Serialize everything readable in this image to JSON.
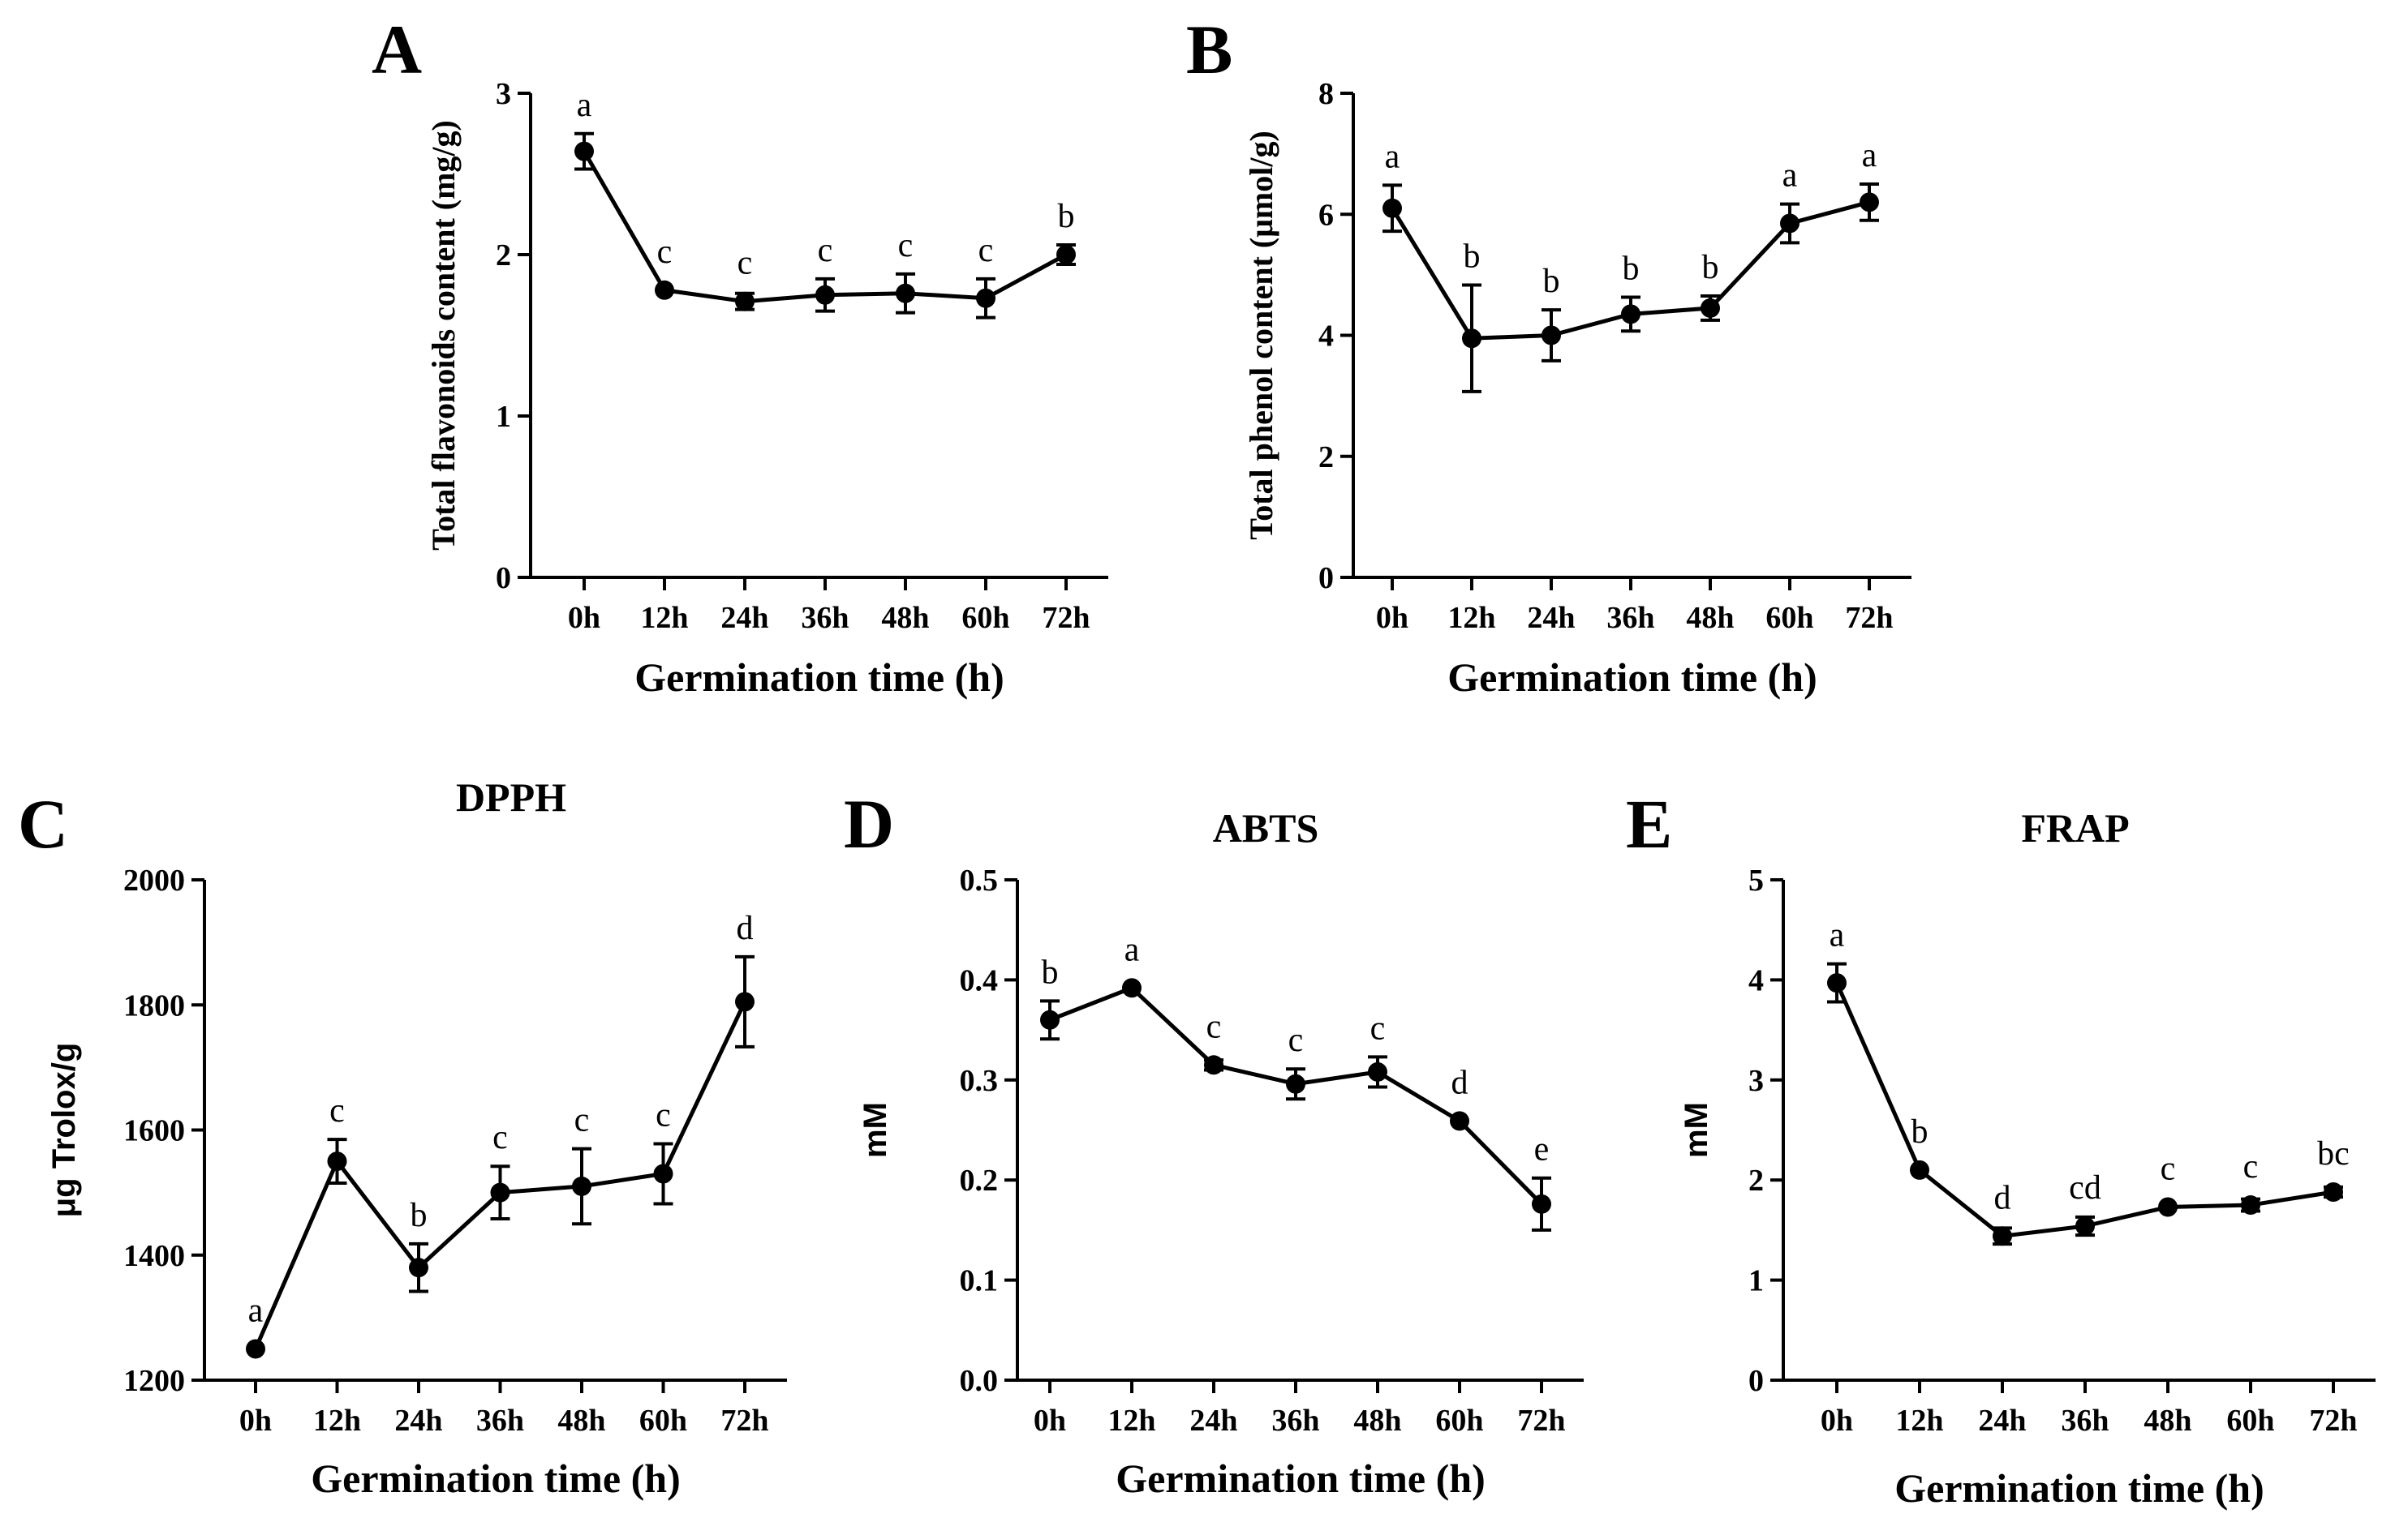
{
  "colors": {
    "ink": "#000000",
    "background": "#ffffff"
  },
  "chart_data": [
    {
      "id": "A",
      "panel_label": "A",
      "type": "line",
      "title": "",
      "xlabel": "Germination time (h)",
      "ylabel": "Total flavonoids content (mg/g)",
      "categories": [
        "0h",
        "12h",
        "24h",
        "36h",
        "48h",
        "60h",
        "72h"
      ],
      "ylim": [
        0,
        3
      ],
      "yticks": [
        0,
        1,
        2,
        3
      ],
      "ytick_labels": [
        "0",
        "1",
        "2",
        "3"
      ],
      "series": [
        {
          "name": "Total flavonoids content",
          "values": [
            2.64,
            1.78,
            1.71,
            1.75,
            1.76,
            1.73,
            2.0
          ],
          "errors": [
            0.11,
            0.02,
            0.05,
            0.1,
            0.12,
            0.12,
            0.06
          ],
          "labels": [
            "a",
            "c",
            "c",
            "c",
            "c",
            "c",
            "b"
          ]
        }
      ]
    },
    {
      "id": "B",
      "panel_label": "B",
      "type": "line",
      "title": "",
      "xlabel": "Germination time (h)",
      "ylabel": "Total phenol content (μmol/g)",
      "categories": [
        "0h",
        "12h",
        "24h",
        "36h",
        "48h",
        "60h",
        "72h"
      ],
      "ylim": [
        0,
        8
      ],
      "yticks": [
        0,
        2,
        4,
        6,
        8
      ],
      "ytick_labels": [
        "0",
        "2",
        "4",
        "6",
        "8"
      ],
      "series": [
        {
          "name": "Total phenol content",
          "values": [
            6.1,
            3.95,
            4.0,
            4.35,
            4.45,
            5.85,
            6.2
          ],
          "errors": [
            0.38,
            0.88,
            0.42,
            0.28,
            0.2,
            0.32,
            0.3
          ],
          "labels": [
            "a",
            "b",
            "b",
            "b",
            "b",
            "a",
            "a"
          ]
        }
      ]
    },
    {
      "id": "C",
      "panel_label": "C",
      "type": "line",
      "title": "DPPH",
      "xlabel": "Germination time (h)",
      "ylabel": "μg Trolox/g",
      "categories": [
        "0h",
        "12h",
        "24h",
        "36h",
        "48h",
        "60h",
        "72h"
      ],
      "ylim": [
        1200,
        2000
      ],
      "yticks": [
        1200,
        1400,
        1600,
        1800,
        2000
      ],
      "ytick_labels": [
        "1200",
        "1400",
        "1600",
        "1800",
        "2000"
      ],
      "series": [
        {
          "name": "DPPH",
          "values": [
            1250,
            1550,
            1380,
            1500,
            1510,
            1530,
            1805
          ],
          "errors": [
            5,
            35,
            38,
            42,
            60,
            48,
            72
          ],
          "labels": [
            "a",
            "c",
            "b",
            "c",
            "c",
            "c",
            "d"
          ]
        }
      ]
    },
    {
      "id": "D",
      "panel_label": "D",
      "type": "line",
      "title": "ABTS",
      "xlabel": "Germination time (h)",
      "ylabel": "mM",
      "categories": [
        "0h",
        "12h",
        "24h",
        "36h",
        "48h",
        "60h",
        "72h"
      ],
      "ylim": [
        0,
        0.5
      ],
      "yticks": [
        0,
        0.1,
        0.2,
        0.3,
        0.4,
        0.5
      ],
      "ytick_labels": [
        "0.0",
        "0.1",
        "0.2",
        "0.3",
        "0.4",
        "0.5"
      ],
      "series": [
        {
          "name": "ABTS",
          "values": [
            0.36,
            0.392,
            0.315,
            0.296,
            0.308,
            0.259,
            0.176
          ],
          "errors": [
            0.019,
            0.004,
            0.005,
            0.015,
            0.015,
            0.004,
            0.026
          ],
          "labels": [
            "b",
            "a",
            "c",
            "c",
            "c",
            "d",
            "e"
          ]
        }
      ]
    },
    {
      "id": "E",
      "panel_label": "E",
      "type": "line",
      "title": "FRAP",
      "xlabel": "Germination time (h)",
      "ylabel": "mM",
      "categories": [
        "0h",
        "12h",
        "24h",
        "36h",
        "48h",
        "60h",
        "72h"
      ],
      "ylim": [
        0,
        5
      ],
      "yticks": [
        0,
        1,
        2,
        3,
        4,
        5
      ],
      "ytick_labels": [
        "0",
        "1",
        "2",
        "3",
        "4",
        "5"
      ],
      "series": [
        {
          "name": "FRAP",
          "values": [
            3.97,
            2.1,
            1.44,
            1.54,
            1.73,
            1.75,
            1.88
          ],
          "errors": [
            0.19,
            0.04,
            0.08,
            0.09,
            0.04,
            0.06,
            0.05
          ],
          "labels": [
            "a",
            "b",
            "d",
            "cd",
            "c",
            "c",
            "bc"
          ]
        }
      ]
    }
  ]
}
